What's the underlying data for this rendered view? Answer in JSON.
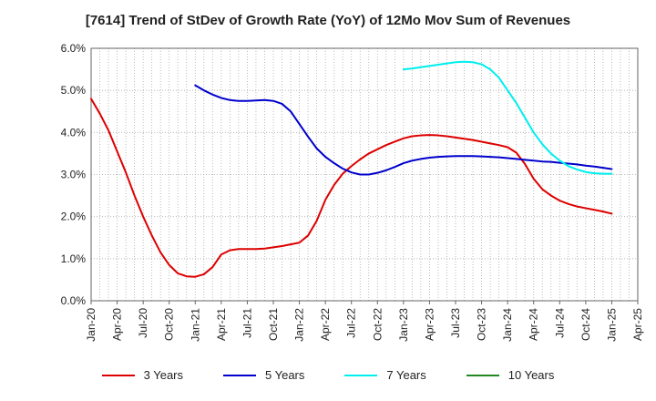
{
  "chart_data": {
    "type": "line",
    "title": "[7614]  Trend of StDev of Growth Rate (YoY) of 12Mo Mov Sum of Revenues",
    "xlabel": "",
    "ylabel": "",
    "ylim": [
      0,
      6
    ],
    "y_ticks": [
      "0.0%",
      "1.0%",
      "2.0%",
      "3.0%",
      "4.0%",
      "5.0%",
      "6.0%"
    ],
    "x_ticks": [
      "Jan-20",
      "Apr-20",
      "Jul-20",
      "Oct-20",
      "Jan-21",
      "Apr-21",
      "Jul-21",
      "Oct-21",
      "Jan-22",
      "Apr-22",
      "Jul-22",
      "Oct-22",
      "Jan-23",
      "Apr-23",
      "Jul-23",
      "Oct-23",
      "Jan-24",
      "Apr-24",
      "Jul-24",
      "Oct-24",
      "Jan-25",
      "Apr-25"
    ],
    "grid": true,
    "legend_position": "bottom",
    "series": [
      {
        "name": "3 Years",
        "color": "#dd0000",
        "x": [
          "Jan-20",
          "Feb-20",
          "Mar-20",
          "Apr-20",
          "May-20",
          "Jun-20",
          "Jul-20",
          "Aug-20",
          "Sep-20",
          "Oct-20",
          "Nov-20",
          "Dec-20",
          "Jan-21",
          "Feb-21",
          "Mar-21",
          "Apr-21",
          "May-21",
          "Jun-21",
          "Jul-21",
          "Aug-21",
          "Sep-21",
          "Oct-21",
          "Nov-21",
          "Dec-21",
          "Jan-22",
          "Feb-22",
          "Mar-22",
          "Apr-22",
          "May-22",
          "Jun-22",
          "Jul-22",
          "Aug-22",
          "Sep-22",
          "Oct-22",
          "Nov-22",
          "Dec-22",
          "Jan-23",
          "Feb-23",
          "Mar-23",
          "Apr-23",
          "May-23",
          "Jun-23",
          "Jul-23",
          "Aug-23",
          "Sep-23",
          "Oct-23",
          "Nov-23",
          "Dec-23",
          "Jan-24",
          "Feb-24",
          "Mar-24",
          "Apr-24",
          "May-24",
          "Jun-24",
          "Jul-24",
          "Aug-24",
          "Sep-24",
          "Oct-24",
          "Nov-24",
          "Dec-24",
          "Jan-25"
        ],
        "values": [
          4.8,
          4.45,
          4.05,
          3.55,
          3.05,
          2.5,
          2.0,
          1.55,
          1.15,
          0.85,
          0.65,
          0.58,
          0.57,
          0.63,
          0.8,
          1.1,
          1.2,
          1.23,
          1.23,
          1.23,
          1.24,
          1.27,
          1.3,
          1.34,
          1.38,
          1.55,
          1.9,
          2.4,
          2.75,
          3.02,
          3.2,
          3.36,
          3.5,
          3.6,
          3.7,
          3.78,
          3.86,
          3.91,
          3.93,
          3.94,
          3.93,
          3.91,
          3.88,
          3.85,
          3.82,
          3.78,
          3.74,
          3.7,
          3.65,
          3.52,
          3.25,
          2.9,
          2.65,
          2.5,
          2.38,
          2.3,
          2.24,
          2.2,
          2.16,
          2.12,
          2.07
        ]
      },
      {
        "name": "5 Years",
        "color": "#0000cc",
        "x": [
          "Jan-21",
          "Feb-21",
          "Mar-21",
          "Apr-21",
          "May-21",
          "Jun-21",
          "Jul-21",
          "Aug-21",
          "Sep-21",
          "Oct-21",
          "Nov-21",
          "Dec-21",
          "Jan-22",
          "Feb-22",
          "Mar-22",
          "Apr-22",
          "May-22",
          "Jun-22",
          "Jul-22",
          "Aug-22",
          "Sep-22",
          "Oct-22",
          "Nov-22",
          "Dec-22",
          "Jan-23",
          "Feb-23",
          "Mar-23",
          "Apr-23",
          "May-23",
          "Jun-23",
          "Jul-23",
          "Aug-23",
          "Sep-23",
          "Oct-23",
          "Nov-23",
          "Dec-23",
          "Jan-24",
          "Feb-24",
          "Mar-24",
          "Apr-24",
          "May-24",
          "Jun-24",
          "Jul-24",
          "Aug-24",
          "Sep-24",
          "Oct-24",
          "Nov-24",
          "Dec-24",
          "Jan-25"
        ],
        "values": [
          5.12,
          5.0,
          4.9,
          4.82,
          4.77,
          4.75,
          4.75,
          4.76,
          4.77,
          4.75,
          4.68,
          4.5,
          4.2,
          3.9,
          3.62,
          3.42,
          3.27,
          3.14,
          3.05,
          3.0,
          3.0,
          3.04,
          3.1,
          3.18,
          3.27,
          3.33,
          3.37,
          3.4,
          3.42,
          3.43,
          3.44,
          3.44,
          3.44,
          3.43,
          3.42,
          3.41,
          3.39,
          3.37,
          3.35,
          3.33,
          3.31,
          3.3,
          3.28,
          3.26,
          3.24,
          3.21,
          3.19,
          3.16,
          3.13
        ]
      },
      {
        "name": "7 Years",
        "color": "#00eeee",
        "x": [
          "Jan-23",
          "Feb-23",
          "Mar-23",
          "Apr-23",
          "May-23",
          "Jun-23",
          "Jul-23",
          "Aug-23",
          "Sep-23",
          "Oct-23",
          "Nov-23",
          "Dec-23",
          "Jan-24",
          "Feb-24",
          "Mar-24",
          "Apr-24",
          "May-24",
          "Jun-24",
          "Jul-24",
          "Aug-24",
          "Sep-24",
          "Oct-24",
          "Nov-24",
          "Dec-24",
          "Jan-25"
        ],
        "values": [
          5.5,
          5.52,
          5.55,
          5.58,
          5.61,
          5.64,
          5.67,
          5.68,
          5.67,
          5.62,
          5.5,
          5.3,
          5.0,
          4.7,
          4.35,
          4.0,
          3.72,
          3.5,
          3.33,
          3.2,
          3.12,
          3.06,
          3.03,
          3.02,
          3.02
        ]
      },
      {
        "name": "10 Years",
        "color": "#228822",
        "x": [],
        "values": []
      }
    ]
  }
}
